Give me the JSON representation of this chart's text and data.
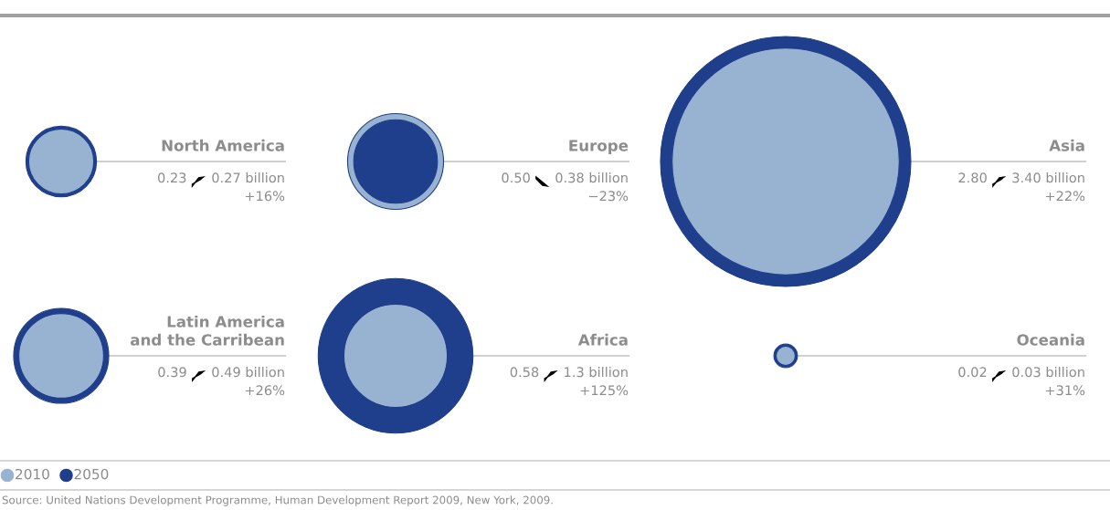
{
  "chart_data": {
    "type": "other",
    "categories": [
      "North America",
      "Europe",
      "Asia",
      "Latin America\nand the Carribean",
      "Africa",
      "Oceania"
    ],
    "series": [
      {
        "name": "2010",
        "color": "#98b3d1",
        "values": [
          0.23,
          0.5,
          2.8,
          0.39,
          0.58,
          0.02
        ],
        "value_labels": [
          "0.23",
          "0.50",
          "2.80",
          "0.39",
          "0.58",
          "0.02"
        ]
      },
      {
        "name": "2050",
        "color": "#1f3f8c",
        "values": [
          0.27,
          0.38,
          3.4,
          0.49,
          1.3,
          0.03
        ],
        "value_labels": [
          "0.27 billion",
          "0.38 billion",
          "3.40 billion",
          "0.49 billion",
          "1.3 billion",
          "0.03 billion"
        ]
      }
    ],
    "annotations": [
      {
        "text": "+16%",
        "x": "North America"
      },
      {
        "text": "−23%",
        "x": "Europe"
      },
      {
        "text": "+22%",
        "x": "Asia"
      },
      {
        "text": "+26%",
        "x": "Latin America\nand the Carribean"
      },
      {
        "text": "+125%",
        "x": "Africa"
      },
      {
        "text": "+31%",
        "x": "Oceania"
      },
      "Source: United Nations Development Programme, Human Development Report 2009, New York, 2009."
    ],
    "legend": "bottom left"
  }
}
